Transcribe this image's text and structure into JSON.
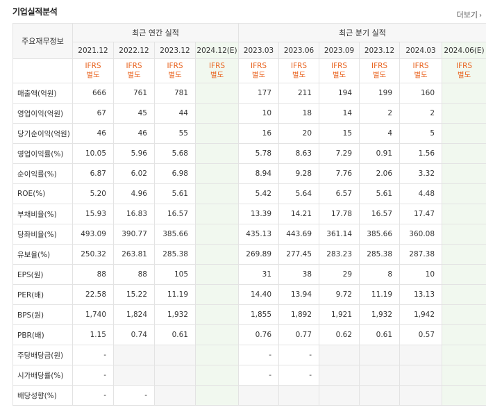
{
  "section_title": "기업실적분석",
  "more_label": "더보기",
  "more_chev": "›",
  "header": {
    "metric_col": "주요재무정보",
    "annual_group": "최근 연간 실적",
    "quarter_group": "최근 분기 실적",
    "annual_periods": [
      "2021.12",
      "2022.12",
      "2023.12",
      "2024.12(E)"
    ],
    "quarter_periods": [
      "2023.03",
      "2023.06",
      "2023.09",
      "2023.12",
      "2024.03",
      "2024.06(E)"
    ],
    "ifrs_line1": "IFRS",
    "ifrs_line2": "별도"
  },
  "rows": [
    {
      "label": "매출액(억원)",
      "annual": [
        "666",
        "761",
        "781",
        ""
      ],
      "quarter": [
        "177",
        "211",
        "194",
        "199",
        "160",
        ""
      ]
    },
    {
      "label": "영업이익(억원)",
      "annual": [
        "67",
        "45",
        "44",
        ""
      ],
      "quarter": [
        "10",
        "18",
        "14",
        "2",
        "2",
        ""
      ]
    },
    {
      "label": "당기순이익(억원)",
      "annual": [
        "46",
        "46",
        "55",
        ""
      ],
      "quarter": [
        "16",
        "20",
        "15",
        "4",
        "5",
        ""
      ]
    },
    {
      "label": "영업이익률(%)",
      "annual": [
        "10.05",
        "5.96",
        "5.68",
        ""
      ],
      "quarter": [
        "5.78",
        "8.63",
        "7.29",
        "0.91",
        "1.56",
        ""
      ]
    },
    {
      "label": "순이익률(%)",
      "annual": [
        "6.87",
        "6.02",
        "6.98",
        ""
      ],
      "quarter": [
        "8.94",
        "9.28",
        "7.76",
        "2.06",
        "3.32",
        ""
      ]
    },
    {
      "label": "ROE(%)",
      "annual": [
        "5.20",
        "4.96",
        "5.61",
        ""
      ],
      "quarter": [
        "5.42",
        "5.64",
        "6.57",
        "5.61",
        "4.48",
        ""
      ]
    },
    {
      "label": "부채비율(%)",
      "annual": [
        "15.93",
        "16.83",
        "16.57",
        ""
      ],
      "quarter": [
        "13.39",
        "14.21",
        "17.78",
        "16.57",
        "17.47",
        ""
      ]
    },
    {
      "label": "당좌비율(%)",
      "annual": [
        "493.09",
        "390.77",
        "385.66",
        ""
      ],
      "quarter": [
        "435.13",
        "443.69",
        "361.14",
        "385.66",
        "360.08",
        ""
      ]
    },
    {
      "label": "유보율(%)",
      "annual": [
        "250.32",
        "263.81",
        "285.38",
        ""
      ],
      "quarter": [
        "269.89",
        "277.45",
        "283.23",
        "285.38",
        "287.38",
        ""
      ]
    },
    {
      "label": "EPS(원)",
      "annual": [
        "88",
        "88",
        "105",
        ""
      ],
      "quarter": [
        "31",
        "38",
        "29",
        "8",
        "10",
        ""
      ]
    },
    {
      "label": "PER(배)",
      "annual": [
        "22.58",
        "15.22",
        "11.19",
        ""
      ],
      "quarter": [
        "14.40",
        "13.94",
        "9.72",
        "11.19",
        "13.13",
        ""
      ]
    },
    {
      "label": "BPS(원)",
      "annual": [
        "1,740",
        "1,824",
        "1,932",
        ""
      ],
      "quarter": [
        "1,855",
        "1,892",
        "1,921",
        "1,932",
        "1,942",
        ""
      ]
    },
    {
      "label": "PBR(배)",
      "annual": [
        "1.15",
        "0.74",
        "0.61",
        ""
      ],
      "quarter": [
        "0.76",
        "0.77",
        "0.62",
        "0.61",
        "0.57",
        ""
      ]
    },
    {
      "label": "주당배당금(원)",
      "annual": [
        "-",
        null,
        null,
        ""
      ],
      "quarter": [
        "-",
        "-",
        null,
        null,
        null,
        ""
      ]
    },
    {
      "label": "시가배당률(%)",
      "annual": [
        "-",
        null,
        null,
        ""
      ],
      "quarter": [
        "-",
        "-",
        null,
        null,
        null,
        ""
      ]
    },
    {
      "label": "배당성향(%)",
      "annual": [
        "-",
        "-",
        null,
        ""
      ],
      "quarter": [
        null,
        null,
        null,
        null,
        null,
        ""
      ]
    }
  ]
}
